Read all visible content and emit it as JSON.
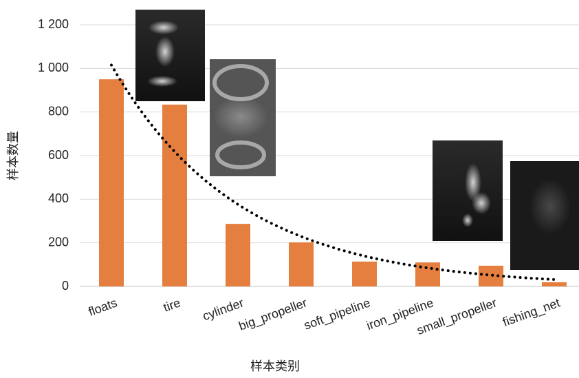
{
  "chart_data": {
    "type": "bar",
    "x_label": "样本类别",
    "y_label": "样本数量",
    "categories": [
      "floats",
      "tire",
      "cylinder",
      "big_propeller",
      "soft_pipeline",
      "iron_pipeline",
      "small_propeller",
      "fishing_net"
    ],
    "values": [
      950,
      834,
      287,
      202,
      114,
      110,
      95,
      19
    ],
    "color": "#e57f3f",
    "trendline": "exponential",
    "ylim": [
      0,
      1200
    ],
    "yticks": [
      0,
      200,
      400,
      600,
      800,
      {
        "value": 1000,
        "label": "1 000"
      },
      {
        "value": 1200,
        "label": "1 200"
      }
    ],
    "grid": true
  }
}
